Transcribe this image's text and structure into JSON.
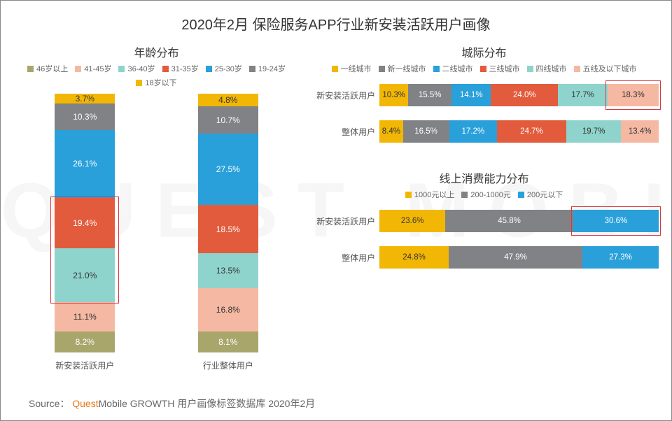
{
  "title": "2020年2月 保险服务APP行业新安装活跃用户画像",
  "watermark": "QUEST MOBILE",
  "source_prefix": "Source：",
  "source_brand1": "Quest",
  "source_brand2": "Mobile",
  "source_rest": "GROWTH 用户画像标签数据库 2020年2月",
  "colors": {
    "yellow": "#f2b705",
    "gray": "#808285",
    "blue": "#2aa0db",
    "orangeRed": "#e25b3d",
    "teal": "#8fd4cc",
    "peach": "#f5b9a3",
    "olive": "#a8a66b"
  },
  "age": {
    "subtitle": "年龄分布",
    "legend": [
      {
        "label": "46岁以上",
        "color": "#a8a66b"
      },
      {
        "label": "41-45岁",
        "color": "#f5b9a3"
      },
      {
        "label": "36-40岁",
        "color": "#8fd4cc"
      },
      {
        "label": "31-35岁",
        "color": "#e25b3d"
      },
      {
        "label": "25-30岁",
        "color": "#2aa0db"
      },
      {
        "label": "19-24岁",
        "color": "#808285"
      },
      {
        "label": "18岁以下",
        "color": "#f2b705"
      }
    ],
    "categories": [
      "新安装活跃用户",
      "行业整体用户"
    ],
    "columns": [
      [
        {
          "value": 8.2,
          "label": "8.2%",
          "color": "#a8a66b",
          "dark": false
        },
        {
          "value": 11.1,
          "label": "11.1%",
          "color": "#f5b9a3",
          "dark": true
        },
        {
          "value": 21.0,
          "label": "21.0%",
          "color": "#8fd4cc",
          "dark": true
        },
        {
          "value": 19.4,
          "label": "19.4%",
          "color": "#e25b3d",
          "dark": false
        },
        {
          "value": 26.1,
          "label": "26.1%",
          "color": "#2aa0db",
          "dark": false
        },
        {
          "value": 10.3,
          "label": "10.3%",
          "color": "#808285",
          "dark": false
        },
        {
          "value": 3.7,
          "label": "3.7%",
          "color": "#f2b705",
          "dark": true
        }
      ],
      [
        {
          "value": 8.1,
          "label": "8.1%",
          "color": "#a8a66b",
          "dark": false
        },
        {
          "value": 16.8,
          "label": "16.8%",
          "color": "#f5b9a3",
          "dark": true
        },
        {
          "value": 13.5,
          "label": "13.5%",
          "color": "#8fd4cc",
          "dark": true
        },
        {
          "value": 18.5,
          "label": "18.5%",
          "color": "#e25b3d",
          "dark": false
        },
        {
          "value": 27.5,
          "label": "27.5%",
          "color": "#2aa0db",
          "dark": false
        },
        {
          "value": 10.7,
          "label": "10.7%",
          "color": "#808285",
          "dark": false
        },
        {
          "value": 4.8,
          "label": "4.8%",
          "color": "#f2b705",
          "dark": true
        }
      ]
    ],
    "highlight": {
      "column": 0,
      "fromSeg": 2,
      "toSeg": 3
    }
  },
  "city": {
    "subtitle": "城际分布",
    "legend": [
      {
        "label": "一线城市",
        "color": "#f2b705"
      },
      {
        "label": "新一线城市",
        "color": "#808285"
      },
      {
        "label": "二线城市",
        "color": "#2aa0db"
      },
      {
        "label": "三线城市",
        "color": "#e25b3d"
      },
      {
        "label": "四线城市",
        "color": "#8fd4cc"
      },
      {
        "label": "五线及以下城市",
        "color": "#f5b9a3"
      }
    ],
    "rows": [
      {
        "label": "新安装活跃用户",
        "segs": [
          {
            "value": 10.3,
            "label": "10.3%",
            "color": "#f2b705",
            "dark": true
          },
          {
            "value": 15.5,
            "label": "15.5%",
            "color": "#808285"
          },
          {
            "value": 14.1,
            "label": "14.1%",
            "color": "#2aa0db"
          },
          {
            "value": 24.0,
            "label": "24.0%",
            "color": "#e25b3d"
          },
          {
            "value": 17.7,
            "label": "17.7%",
            "color": "#8fd4cc",
            "dark": true
          },
          {
            "value": 18.3,
            "label": "18.3%",
            "color": "#f5b9a3",
            "dark": true
          }
        ],
        "highlightSeg": 5
      },
      {
        "label": "整体用户",
        "segs": [
          {
            "value": 8.4,
            "label": "8.4%",
            "color": "#f2b705",
            "dark": true
          },
          {
            "value": 16.5,
            "label": "16.5%",
            "color": "#808285"
          },
          {
            "value": 17.2,
            "label": "17.2%",
            "color": "#2aa0db"
          },
          {
            "value": 24.7,
            "label": "24.7%",
            "color": "#e25b3d"
          },
          {
            "value": 19.7,
            "label": "19.7%",
            "color": "#8fd4cc",
            "dark": true
          },
          {
            "value": 13.4,
            "label": "13.4%",
            "color": "#f5b9a3",
            "dark": true
          }
        ]
      }
    ]
  },
  "spend": {
    "subtitle": "线上消费能力分布",
    "legend": [
      {
        "label": "1000元以上",
        "color": "#f2b705"
      },
      {
        "label": "200-1000元",
        "color": "#808285"
      },
      {
        "label": "200元以下",
        "color": "#2aa0db"
      }
    ],
    "rows": [
      {
        "label": "新安装活跃用户",
        "segs": [
          {
            "value": 23.6,
            "label": "23.6%",
            "color": "#f2b705",
            "dark": true
          },
          {
            "value": 45.8,
            "label": "45.8%",
            "color": "#808285"
          },
          {
            "value": 30.6,
            "label": "30.6%",
            "color": "#2aa0db"
          }
        ],
        "highlightSeg": 2
      },
      {
        "label": "整体用户",
        "segs": [
          {
            "value": 24.8,
            "label": "24.8%",
            "color": "#f2b705",
            "dark": true
          },
          {
            "value": 47.9,
            "label": "47.9%",
            "color": "#808285"
          },
          {
            "value": 27.3,
            "label": "27.3%",
            "color": "#2aa0db"
          }
        ]
      }
    ]
  }
}
